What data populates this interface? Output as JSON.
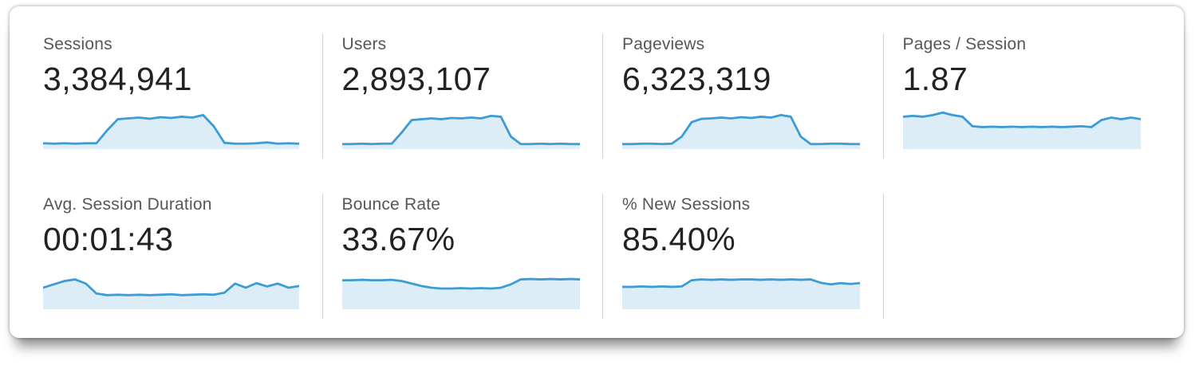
{
  "colors": {
    "spark_line": "#3d9bd5",
    "spark_fill": "#ddedf8",
    "label_text": "#565656",
    "value_text": "#222222"
  },
  "metrics": [
    {
      "label": "Sessions",
      "value": "3,384,941",
      "spark": [
        0.14,
        0.13,
        0.14,
        0.13,
        0.14,
        0.14,
        0.45,
        0.72,
        0.74,
        0.76,
        0.73,
        0.77,
        0.75,
        0.78,
        0.76,
        0.82,
        0.55,
        0.15,
        0.13,
        0.13,
        0.14,
        0.16,
        0.13,
        0.14,
        0.13
      ]
    },
    {
      "label": "Users",
      "value": "2,893,107",
      "spark": [
        0.12,
        0.12,
        0.13,
        0.12,
        0.13,
        0.13,
        0.4,
        0.7,
        0.72,
        0.74,
        0.72,
        0.75,
        0.74,
        0.76,
        0.74,
        0.8,
        0.78,
        0.3,
        0.12,
        0.12,
        0.13,
        0.12,
        0.13,
        0.12,
        0.12
      ]
    },
    {
      "label": "Pageviews",
      "value": "6,323,319",
      "spark": [
        0.12,
        0.12,
        0.13,
        0.13,
        0.12,
        0.13,
        0.3,
        0.65,
        0.73,
        0.74,
        0.76,
        0.74,
        0.77,
        0.75,
        0.78,
        0.76,
        0.82,
        0.78,
        0.3,
        0.12,
        0.12,
        0.13,
        0.13,
        0.12,
        0.12
      ]
    },
    {
      "label": "Pages / Session",
      "value": "1.87",
      "spark": [
        0.78,
        0.8,
        0.78,
        0.82,
        0.88,
        0.82,
        0.78,
        0.55,
        0.53,
        0.54,
        0.53,
        0.54,
        0.53,
        0.54,
        0.53,
        0.54,
        0.53,
        0.54,
        0.55,
        0.53,
        0.7,
        0.76,
        0.72,
        0.76,
        0.72
      ]
    },
    {
      "label": "Avg. Session Duration",
      "value": "00:01:43",
      "spark": [
        0.52,
        0.6,
        0.68,
        0.72,
        0.62,
        0.38,
        0.34,
        0.35,
        0.34,
        0.35,
        0.34,
        0.35,
        0.36,
        0.34,
        0.35,
        0.36,
        0.35,
        0.4,
        0.62,
        0.52,
        0.63,
        0.55,
        0.62,
        0.52,
        0.56
      ]
    },
    {
      "label": "Bounce Rate",
      "value": "33.67%",
      "spark": [
        0.7,
        0.7,
        0.71,
        0.7,
        0.7,
        0.71,
        0.68,
        0.62,
        0.56,
        0.52,
        0.5,
        0.5,
        0.51,
        0.5,
        0.51,
        0.5,
        0.52,
        0.6,
        0.72,
        0.73,
        0.72,
        0.73,
        0.72,
        0.73,
        0.72
      ]
    },
    {
      "label": "% New Sessions",
      "value": "85.40%",
      "spark": [
        0.54,
        0.54,
        0.55,
        0.54,
        0.55,
        0.54,
        0.55,
        0.7,
        0.72,
        0.71,
        0.72,
        0.71,
        0.72,
        0.72,
        0.71,
        0.72,
        0.71,
        0.72,
        0.71,
        0.72,
        0.64,
        0.6,
        0.63,
        0.61,
        0.63
      ]
    }
  ]
}
